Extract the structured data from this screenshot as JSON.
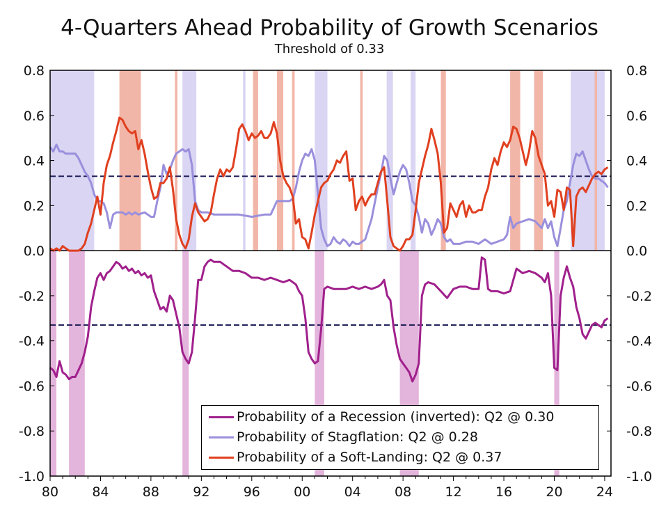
{
  "chart_data": {
    "type": "line",
    "title": "4-Quarters Ahead Probability of Growth Scenarios",
    "subtitle": "Threshold of 0.33",
    "xlabel": "",
    "ylabel": "",
    "xlim": [
      1980,
      2024.5
    ],
    "ylim": [
      -1.0,
      0.8
    ],
    "x_tick_values": [
      1980,
      1984,
      1988,
      1992,
      1996,
      2000,
      2004,
      2008,
      2012,
      2016,
      2020,
      2024
    ],
    "x_tick_labels": [
      "80",
      "84",
      "88",
      "92",
      "96",
      "00",
      "04",
      "08",
      "12",
      "16",
      "20",
      "24"
    ],
    "y_tick_values": [
      0.8,
      0.6,
      0.4,
      0.2,
      0.0,
      -0.2,
      -0.4,
      -0.6,
      -0.8,
      -1.0
    ],
    "y_tick_labels": [
      "0.8",
      "0.6",
      "0.4",
      "0.2",
      "0.0",
      "-0.2",
      "-0.4",
      "-0.6",
      "-0.8",
      "-1.0"
    ],
    "threshold_lines": [
      0.33,
      -0.33
    ],
    "colors": {
      "recession": "#a0208c",
      "stagflation": "#9a8fdc",
      "softlanding": "#e04020",
      "stag_shade": "#d9d5f3",
      "soft_shade": "#f2b6a8",
      "rec_shade": "#e3b4dc",
      "threshold": "#22205a"
    },
    "shaded_periods": {
      "stagflation_regime": [
        [
          1980.0,
          1983.5
        ],
        [
          1990.5,
          1991.6
        ],
        [
          1995.3,
          1995.5
        ],
        [
          2001.0,
          2002.0
        ],
        [
          2006.7,
          2007.2
        ],
        [
          2008.6,
          2009.0
        ],
        [
          2021.3,
          2024.0
        ]
      ],
      "softlanding_regime": [
        [
          1985.5,
          1987.2
        ],
        [
          1989.9,
          1990.1
        ],
        [
          1996.1,
          1996.5
        ],
        [
          1998.0,
          1998.5
        ],
        [
          1999.2,
          1999.4
        ],
        [
          2004.6,
          2004.8
        ],
        [
          2011.0,
          2011.4
        ],
        [
          2016.5,
          2017.3
        ],
        [
          2018.4,
          2019.1
        ],
        [
          2023.2,
          2023.4
        ]
      ],
      "recession": [
        [
          1980.0,
          1980.5
        ],
        [
          1981.5,
          1982.75
        ],
        [
          1990.5,
          1991.0
        ],
        [
          2001.0,
          2001.75
        ],
        [
          2007.75,
          2009.25
        ],
        [
          2020.0,
          2020.4
        ]
      ]
    },
    "series": [
      {
        "name": "Probability of a Recession (inverted)",
        "legend": "Probability of a Recession (inverted): Q2 @ 0.30",
        "x": [
          1980.0,
          1980.25,
          1980.5,
          1980.75,
          1981.0,
          1981.25,
          1981.5,
          1981.75,
          1982.0,
          1982.25,
          1982.5,
          1982.75,
          1983.0,
          1983.25,
          1983.5,
          1983.75,
          1984.0,
          1984.25,
          1984.5,
          1984.75,
          1985.0,
          1985.25,
          1985.5,
          1985.75,
          1986.0,
          1986.25,
          1986.5,
          1986.75,
          1987.0,
          1987.25,
          1987.5,
          1987.75,
          1988.0,
          1988.25,
          1988.5,
          1988.75,
          1989.0,
          1989.25,
          1989.5,
          1989.75,
          1990.0,
          1990.25,
          1990.5,
          1990.75,
          1991.0,
          1991.25,
          1991.5,
          1991.75,
          1992.0,
          1992.25,
          1992.5,
          1992.75,
          1993.0,
          1993.5,
          1994.0,
          1994.5,
          1995.0,
          1995.5,
          1996.0,
          1996.5,
          1997.0,
          1997.5,
          1998.0,
          1998.5,
          1999.0,
          1999.5,
          1999.75,
          2000.0,
          2000.25,
          2000.5,
          2000.75,
          2001.0,
          2001.25,
          2001.5,
          2001.75,
          2002.0,
          2002.5,
          2003.0,
          2003.5,
          2004.0,
          2004.5,
          2005.0,
          2005.5,
          2006.0,
          2006.25,
          2006.5,
          2006.75,
          2007.0,
          2007.25,
          2007.5,
          2007.75,
          2008.0,
          2008.25,
          2008.5,
          2008.75,
          2009.0,
          2009.25,
          2009.5,
          2009.75,
          2010.0,
          2010.5,
          2011.0,
          2011.5,
          2012.0,
          2012.5,
          2013.0,
          2013.5,
          2014.0,
          2014.25,
          2014.5,
          2014.75,
          2015.0,
          2015.5,
          2016.0,
          2016.5,
          2017.0,
          2017.5,
          2018.0,
          2018.5,
          2019.0,
          2019.25,
          2019.5,
          2019.75,
          2020.0,
          2020.25,
          2020.5,
          2020.75,
          2021.0,
          2021.25,
          2021.5,
          2021.75,
          2022.0,
          2022.25,
          2022.5,
          2022.75,
          2023.0,
          2023.25,
          2023.5,
          2023.75,
          2024.0,
          2024.25
        ],
        "values": [
          -0.52,
          -0.53,
          -0.56,
          -0.49,
          -0.54,
          -0.55,
          -0.57,
          -0.56,
          -0.56,
          -0.53,
          -0.5,
          -0.45,
          -0.38,
          -0.25,
          -0.18,
          -0.12,
          -0.1,
          -0.13,
          -0.1,
          -0.09,
          -0.07,
          -0.05,
          -0.06,
          -0.08,
          -0.07,
          -0.09,
          -0.08,
          -0.1,
          -0.09,
          -0.11,
          -0.1,
          -0.12,
          -0.11,
          -0.18,
          -0.22,
          -0.26,
          -0.25,
          -0.27,
          -0.2,
          -0.22,
          -0.28,
          -0.34,
          -0.45,
          -0.48,
          -0.5,
          -0.45,
          -0.3,
          -0.13,
          -0.13,
          -0.07,
          -0.05,
          -0.04,
          -0.05,
          -0.05,
          -0.07,
          -0.09,
          -0.09,
          -0.1,
          -0.12,
          -0.12,
          -0.13,
          -0.12,
          -0.13,
          -0.14,
          -0.13,
          -0.15,
          -0.18,
          -0.2,
          -0.3,
          -0.45,
          -0.48,
          -0.5,
          -0.49,
          -0.35,
          -0.17,
          -0.16,
          -0.17,
          -0.17,
          -0.17,
          -0.16,
          -0.17,
          -0.16,
          -0.17,
          -0.16,
          -0.15,
          -0.13,
          -0.2,
          -0.22,
          -0.34,
          -0.42,
          -0.48,
          -0.5,
          -0.52,
          -0.54,
          -0.58,
          -0.55,
          -0.5,
          -0.2,
          -0.15,
          -0.14,
          -0.15,
          -0.18,
          -0.21,
          -0.17,
          -0.16,
          -0.16,
          -0.17,
          -0.17,
          -0.03,
          -0.04,
          -0.17,
          -0.18,
          -0.18,
          -0.19,
          -0.18,
          -0.08,
          -0.1,
          -0.09,
          -0.1,
          -0.12,
          -0.14,
          -0.1,
          -0.2,
          -0.52,
          -0.53,
          -0.2,
          -0.12,
          -0.07,
          -0.12,
          -0.16,
          -0.25,
          -0.3,
          -0.37,
          -0.39,
          -0.36,
          -0.33,
          -0.32,
          -0.33,
          -0.34,
          -0.31,
          -0.3
        ]
      },
      {
        "name": "Probability of Stagflation",
        "legend": "Probability of Stagflation: Q2 @ 0.28",
        "x": [
          1980.0,
          1980.25,
          1980.5,
          1980.75,
          1981.0,
          1981.25,
          1981.5,
          1981.75,
          1982.0,
          1982.25,
          1982.5,
          1982.75,
          1983.0,
          1983.25,
          1983.5,
          1983.75,
          1984.0,
          1984.25,
          1984.5,
          1984.75,
          1985.0,
          1985.25,
          1985.5,
          1985.75,
          1986.0,
          1986.25,
          1986.5,
          1986.75,
          1987.0,
          1987.5,
          1988.0,
          1988.25,
          1988.5,
          1988.75,
          1989.0,
          1989.25,
          1989.5,
          1989.75,
          1990.0,
          1990.25,
          1990.5,
          1990.75,
          1991.0,
          1991.25,
          1991.5,
          1991.75,
          1992.0,
          1992.5,
          1993.0,
          1994.0,
          1995.0,
          1996.0,
          1997.0,
          1997.5,
          1998.0,
          1998.5,
          1999.0,
          1999.25,
          1999.5,
          1999.75,
          2000.0,
          2000.25,
          2000.5,
          2000.75,
          2001.0,
          2001.25,
          2001.5,
          2001.75,
          2002.0,
          2002.25,
          2002.5,
          2002.75,
          2003.0,
          2003.25,
          2003.5,
          2003.75,
          2004.0,
          2004.25,
          2004.5,
          2004.75,
          2005.0,
          2005.5,
          2006.0,
          2006.25,
          2006.5,
          2006.75,
          2007.0,
          2007.25,
          2007.5,
          2007.75,
          2008.0,
          2008.25,
          2008.5,
          2008.75,
          2009.0,
          2009.25,
          2009.5,
          2009.75,
          2010.0,
          2010.25,
          2010.5,
          2010.75,
          2011.0,
          2011.25,
          2011.5,
          2011.75,
          2012.0,
          2012.5,
          2013.0,
          2013.5,
          2014.0,
          2014.5,
          2015.0,
          2015.5,
          2016.0,
          2016.25,
          2016.5,
          2016.75,
          2017.0,
          2017.5,
          2018.0,
          2018.5,
          2019.0,
          2019.25,
          2019.5,
          2019.75,
          2020.0,
          2020.25,
          2020.5,
          2020.75,
          2021.0,
          2021.25,
          2021.5,
          2021.75,
          2022.0,
          2022.25,
          2022.5,
          2022.75,
          2023.0,
          2023.25,
          2023.5,
          2023.75,
          2024.0,
          2024.25
        ],
        "values": [
          0.46,
          0.44,
          0.47,
          0.44,
          0.44,
          0.43,
          0.43,
          0.43,
          0.43,
          0.41,
          0.38,
          0.35,
          0.33,
          0.3,
          0.25,
          0.22,
          0.22,
          0.21,
          0.17,
          0.1,
          0.16,
          0.17,
          0.17,
          0.17,
          0.16,
          0.17,
          0.16,
          0.17,
          0.16,
          0.17,
          0.15,
          0.15,
          0.22,
          0.28,
          0.38,
          0.34,
          0.36,
          0.4,
          0.43,
          0.44,
          0.45,
          0.44,
          0.45,
          0.38,
          0.22,
          0.18,
          0.17,
          0.17,
          0.16,
          0.16,
          0.16,
          0.15,
          0.16,
          0.16,
          0.22,
          0.22,
          0.22,
          0.23,
          0.28,
          0.35,
          0.4,
          0.43,
          0.42,
          0.45,
          0.4,
          0.25,
          0.1,
          0.05,
          0.02,
          0.03,
          0.06,
          0.04,
          0.03,
          0.05,
          0.04,
          0.02,
          0.04,
          0.03,
          0.03,
          0.04,
          0.05,
          0.14,
          0.28,
          0.34,
          0.42,
          0.4,
          0.32,
          0.25,
          0.3,
          0.35,
          0.38,
          0.36,
          0.3,
          0.22,
          0.2,
          0.15,
          0.08,
          0.14,
          0.12,
          0.07,
          0.1,
          0.14,
          0.12,
          0.06,
          0.04,
          0.05,
          0.03,
          0.03,
          0.04,
          0.04,
          0.03,
          0.05,
          0.03,
          0.04,
          0.05,
          0.07,
          0.15,
          0.1,
          0.12,
          0.13,
          0.14,
          0.13,
          0.1,
          0.14,
          0.1,
          0.13,
          0.06,
          0.02,
          0.1,
          0.18,
          0.22,
          0.3,
          0.38,
          0.43,
          0.42,
          0.44,
          0.4,
          0.36,
          0.33,
          0.32,
          0.32,
          0.31,
          0.3,
          0.28
        ]
      },
      {
        "name": "Probability of a Soft-Landing",
        "legend": "Probability of a Soft-Landing: Q2 @ 0.37",
        "x": [
          1980.0,
          1980.25,
          1980.5,
          1980.75,
          1981.0,
          1981.25,
          1981.5,
          1981.75,
          1982.0,
          1982.25,
          1982.5,
          1982.75,
          1983.0,
          1983.25,
          1983.5,
          1983.75,
          1984.0,
          1984.25,
          1984.5,
          1984.75,
          1985.0,
          1985.25,
          1985.5,
          1985.75,
          1986.0,
          1986.25,
          1986.5,
          1986.75,
          1987.0,
          1987.25,
          1987.5,
          1987.75,
          1988.0,
          1988.25,
          1988.5,
          1988.75,
          1989.0,
          1989.25,
          1989.5,
          1989.75,
          1990.0,
          1990.25,
          1990.5,
          1990.75,
          1991.0,
          1991.25,
          1991.5,
          1991.75,
          1992.0,
          1992.25,
          1992.5,
          1992.75,
          1993.0,
          1993.25,
          1993.5,
          1993.75,
          1994.0,
          1994.25,
          1994.5,
          1994.75,
          1995.0,
          1995.25,
          1995.5,
          1995.75,
          1996.0,
          1996.25,
          1996.5,
          1996.75,
          1997.0,
          1997.25,
          1997.5,
          1997.75,
          1998.0,
          1998.25,
          1998.5,
          1998.75,
          1999.0,
          1999.25,
          1999.5,
          1999.75,
          2000.0,
          2000.25,
          2000.5,
          2000.75,
          2001.0,
          2001.25,
          2001.5,
          2001.75,
          2002.0,
          2002.25,
          2002.5,
          2002.75,
          2003.0,
          2003.25,
          2003.5,
          2003.75,
          2004.0,
          2004.25,
          2004.5,
          2004.75,
          2005.0,
          2005.25,
          2005.5,
          2005.75,
          2006.0,
          2006.25,
          2006.5,
          2006.75,
          2007.0,
          2007.25,
          2007.5,
          2007.75,
          2008.0,
          2008.25,
          2008.5,
          2008.75,
          2009.0,
          2009.25,
          2009.5,
          2009.75,
          2010.0,
          2010.25,
          2010.5,
          2010.75,
          2011.0,
          2011.25,
          2011.5,
          2011.75,
          2012.0,
          2012.25,
          2012.5,
          2012.75,
          2013.0,
          2013.25,
          2013.5,
          2013.75,
          2014.0,
          2014.25,
          2014.5,
          2014.75,
          2015.0,
          2015.25,
          2015.5,
          2015.75,
          2016.0,
          2016.25,
          2016.5,
          2016.75,
          2017.0,
          2017.25,
          2017.5,
          2017.75,
          2018.0,
          2018.25,
          2018.5,
          2018.75,
          2019.0,
          2019.25,
          2019.5,
          2019.75,
          2020.0,
          2020.25,
          2020.5,
          2020.75,
          2021.0,
          2021.25,
          2021.5,
          2021.75,
          2022.0,
          2022.25,
          2022.5,
          2022.75,
          2023.0,
          2023.25,
          2023.5,
          2023.75,
          2024.0,
          2024.25
        ],
        "values": [
          0.01,
          0.0,
          0.01,
          0.0,
          0.02,
          0.01,
          0.0,
          0.0,
          0.0,
          0.0,
          0.01,
          0.03,
          0.08,
          0.12,
          0.18,
          0.24,
          0.16,
          0.3,
          0.38,
          0.42,
          0.48,
          0.53,
          0.59,
          0.58,
          0.55,
          0.53,
          0.52,
          0.53,
          0.45,
          0.49,
          0.43,
          0.35,
          0.28,
          0.23,
          0.24,
          0.3,
          0.3,
          0.32,
          0.37,
          0.27,
          0.14,
          0.07,
          0.03,
          0.01,
          0.05,
          0.15,
          0.21,
          0.17,
          0.15,
          0.13,
          0.14,
          0.17,
          0.25,
          0.32,
          0.36,
          0.33,
          0.36,
          0.35,
          0.37,
          0.45,
          0.54,
          0.56,
          0.53,
          0.49,
          0.52,
          0.5,
          0.51,
          0.53,
          0.5,
          0.5,
          0.52,
          0.57,
          0.52,
          0.4,
          0.33,
          0.3,
          0.28,
          0.24,
          0.12,
          0.14,
          0.06,
          0.05,
          0.01,
          0.08,
          0.16,
          0.22,
          0.28,
          0.3,
          0.31,
          0.34,
          0.36,
          0.4,
          0.39,
          0.42,
          0.44,
          0.31,
          0.32,
          0.18,
          0.22,
          0.24,
          0.2,
          0.23,
          0.25,
          0.25,
          0.3,
          0.35,
          0.37,
          0.22,
          0.06,
          0.02,
          0.01,
          0.0,
          0.02,
          0.05,
          0.05,
          0.07,
          0.18,
          0.3,
          0.36,
          0.42,
          0.47,
          0.54,
          0.49,
          0.43,
          0.3,
          0.08,
          0.1,
          0.21,
          0.18,
          0.15,
          0.2,
          0.22,
          0.15,
          0.2,
          0.17,
          0.17,
          0.18,
          0.18,
          0.24,
          0.28,
          0.36,
          0.41,
          0.38,
          0.44,
          0.48,
          0.46,
          0.49,
          0.55,
          0.54,
          0.5,
          0.44,
          0.38,
          0.44,
          0.53,
          0.5,
          0.42,
          0.38,
          0.34,
          0.2,
          0.22,
          0.15,
          0.27,
          0.26,
          0.18,
          0.28,
          0.27,
          0.02,
          0.24,
          0.27,
          0.28,
          0.26,
          0.29,
          0.32,
          0.34,
          0.35,
          0.34,
          0.36,
          0.37
        ]
      }
    ]
  }
}
